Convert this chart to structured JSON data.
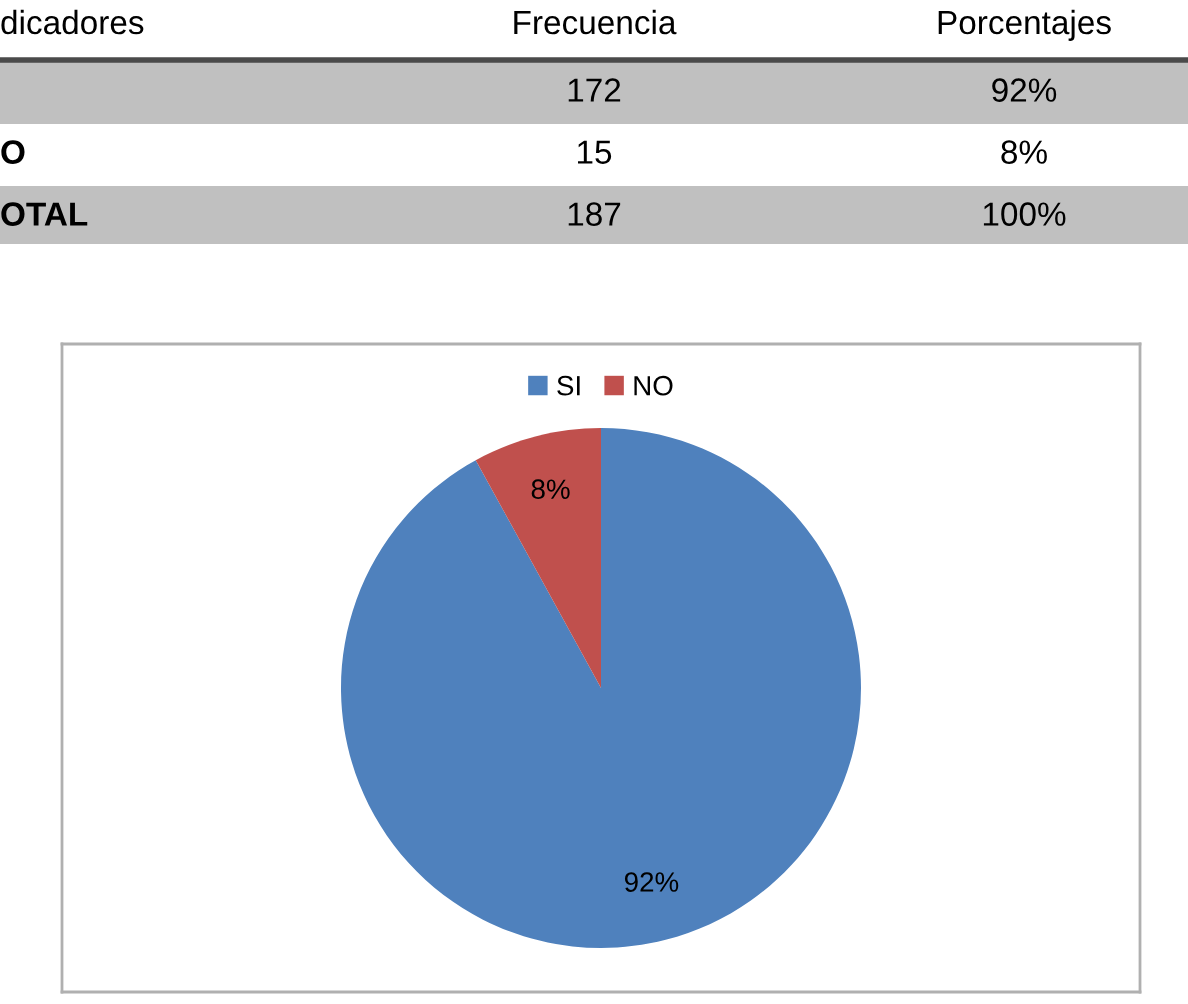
{
  "chart_data": [
    {
      "type": "other",
      "categories": [
        "dicadores",
        "Frecuencia",
        "Porcentajes"
      ],
      "y_categories": [
        null,
        "O",
        "OTAL"
      ],
      "cell_labels": [
        [
          "172",
          "92%"
        ],
        [
          "15",
          "8%"
        ],
        [
          "187",
          "100%"
        ]
      ]
    },
    {
      "type": "pie",
      "categories": [
        "SI",
        "NO"
      ],
      "values": [
        92,
        8
      ],
      "colors": [
        "#4f81bd",
        "#c0504d"
      ],
      "value_labels": [
        "92%",
        "8%"
      ],
      "legend": "top"
    }
  ]
}
